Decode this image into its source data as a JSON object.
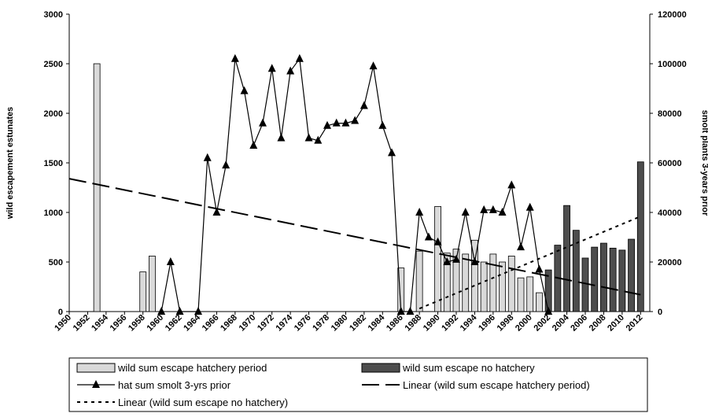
{
  "chart_data": {
    "type": "bar-line",
    "y_label": "wild escapement estunates",
    "y2_label": "smolt plants 3-years prior",
    "xlim": [
      1950,
      2013
    ],
    "xticks": [
      1950,
      1952,
      1954,
      1956,
      1958,
      1960,
      1962,
      1964,
      1966,
      1968,
      1970,
      1972,
      1974,
      1976,
      1978,
      1980,
      1982,
      1984,
      1986,
      1988,
      1990,
      1992,
      1994,
      1996,
      1998,
      2000,
      2002,
      2004,
      2006,
      2008,
      2010,
      2012
    ],
    "ylim": [
      0,
      3000
    ],
    "yticks": [
      0,
      500,
      1000,
      1500,
      2000,
      2500,
      3000
    ],
    "y2lim": [
      0,
      120000
    ],
    "y2ticks": [
      0,
      20000,
      40000,
      60000,
      80000,
      100000,
      120000
    ],
    "series": [
      {
        "name": "wild sum escape hatchery period",
        "kind": "bar",
        "color": "#d9d9d9",
        "x": [
          1953,
          1958,
          1959,
          1986,
          1988,
          1990,
          1991,
          1992,
          1993,
          1994,
          1995,
          1996,
          1997,
          1998,
          1999,
          2000,
          2001
        ],
        "values": [
          2500,
          400,
          560,
          440,
          610,
          1060,
          590,
          630,
          580,
          720,
          500,
          580,
          500,
          560,
          340,
          350,
          190
        ]
      },
      {
        "name": "wild sum escape no hatchery",
        "kind": "bar",
        "color": "#4d4d4d",
        "x": [
          2002,
          2003,
          2004,
          2005,
          2006,
          2007,
          2008,
          2009,
          2010,
          2011,
          2012
        ],
        "values": [
          420,
          670,
          1070,
          820,
          540,
          650,
          690,
          640,
          620,
          730,
          1510
        ]
      },
      {
        "name": "hat sum smolt 3-yrs prior",
        "kind": "line",
        "axis": "y2",
        "color": "#000000",
        "x": [
          1960,
          1961,
          1962,
          1964,
          1965,
          1966,
          1967,
          1968,
          1969,
          1970,
          1971,
          1972,
          1973,
          1974,
          1975,
          1976,
          1977,
          1978,
          1979,
          1980,
          1981,
          1982,
          1983,
          1984,
          1985,
          1986,
          1987,
          1988,
          1989,
          1990,
          1991,
          1992,
          1993,
          1994,
          1995,
          1996,
          1997,
          1998,
          1999,
          2000,
          2001,
          2002
        ],
        "values": [
          0,
          20000,
          0,
          0,
          62000,
          40000,
          59000,
          102000,
          89000,
          67000,
          76000,
          98000,
          70000,
          97000,
          102000,
          70000,
          69000,
          75000,
          76000,
          76000,
          77000,
          83000,
          99000,
          75000,
          64000,
          0,
          0,
          40000,
          30000,
          28000,
          20000,
          21000,
          40000,
          20000,
          41000,
          41000,
          40000,
          51000,
          26000,
          42000,
          17000,
          0
        ]
      },
      {
        "name": "Linear (wild sum escape hatchery period)",
        "kind": "dash",
        "color": "#000000",
        "x": [
          1950,
          2012
        ],
        "values": [
          1340,
          170
        ]
      },
      {
        "name": "Linear (wild sum escape no hatchery)",
        "kind": "dot",
        "color": "#000000",
        "x": [
          1988,
          2012
        ],
        "values": [
          30,
          960
        ]
      }
    ]
  }
}
